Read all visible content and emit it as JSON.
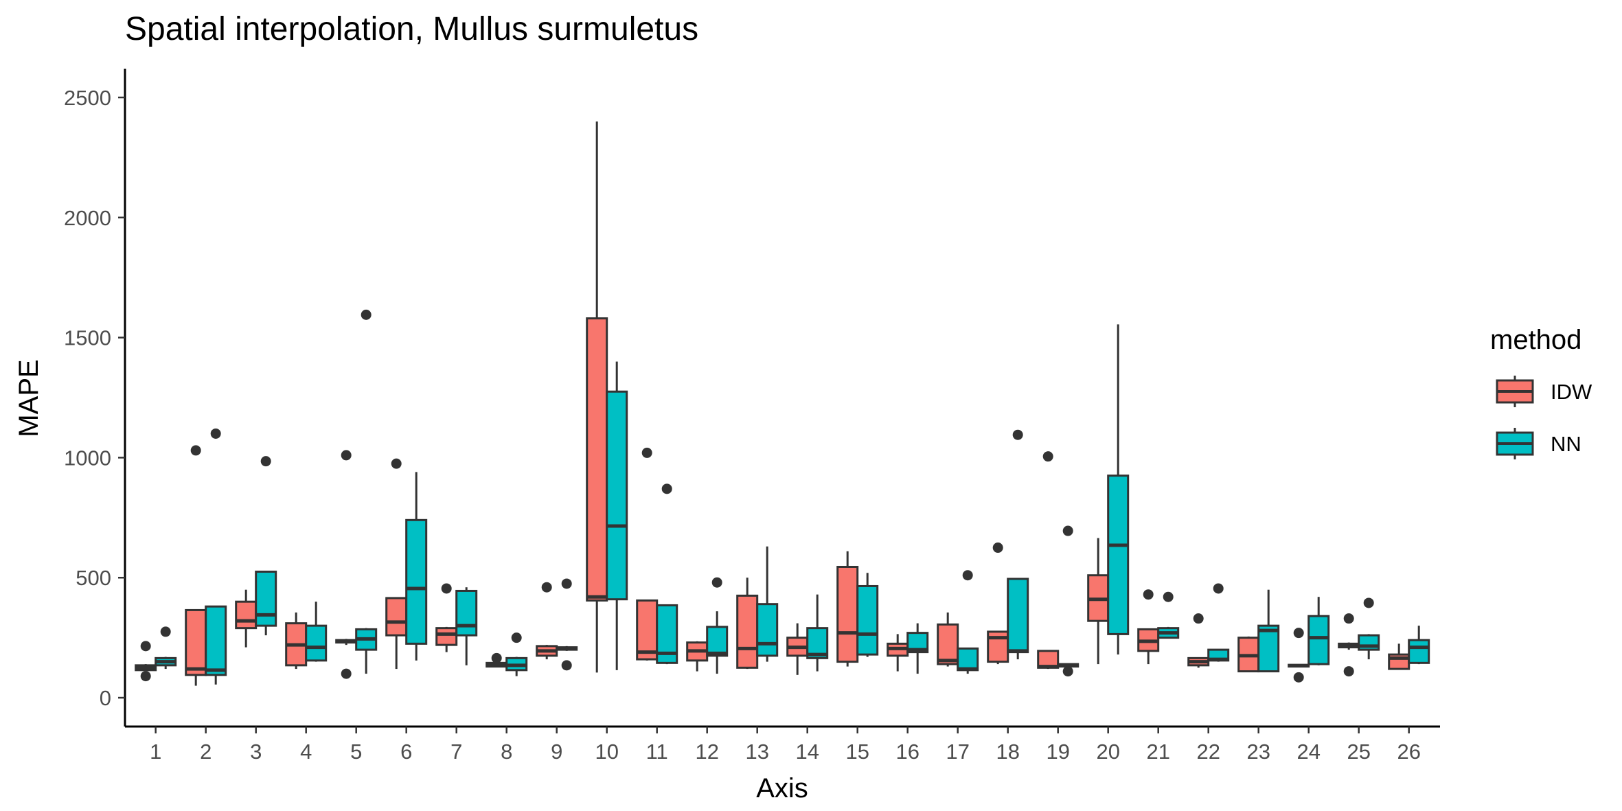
{
  "chart_data": {
    "type": "boxplot",
    "title": "Spatial interpolation, Mullus surmuletus",
    "xlabel": "Axis",
    "ylabel": "MAPE",
    "ylim": [
      -120,
      2620
    ],
    "yticks": [
      0,
      500,
      1000,
      1500,
      2000,
      2500
    ],
    "grid": false,
    "legend_position": "right",
    "legend_title": "method",
    "categories": [
      "1",
      "2",
      "3",
      "4",
      "5",
      "6",
      "7",
      "8",
      "9",
      "10",
      "11",
      "12",
      "13",
      "14",
      "15",
      "16",
      "17",
      "18",
      "19",
      "20",
      "21",
      "22",
      "23",
      "24",
      "25",
      "26"
    ],
    "series": [
      {
        "name": "IDW",
        "color": "#F8766D",
        "boxes": [
          {
            "lw": 115,
            "q1": 115,
            "med": 125,
            "q3": 135,
            "uw": 140,
            "out": [
              90,
              215
            ]
          },
          {
            "lw": 50,
            "q1": 95,
            "med": 120,
            "q3": 365,
            "uw": 365,
            "out": [
              1030
            ]
          },
          {
            "lw": 210,
            "q1": 290,
            "med": 320,
            "q3": 400,
            "uw": 450,
            "out": []
          },
          {
            "lw": 120,
            "q1": 135,
            "med": 220,
            "q3": 310,
            "uw": 355,
            "out": []
          },
          {
            "lw": 220,
            "q1": 230,
            "med": 235,
            "q3": 240,
            "uw": 245,
            "out": [
              100,
              1010
            ]
          },
          {
            "lw": 120,
            "q1": 260,
            "med": 315,
            "q3": 415,
            "uw": 415,
            "out": [
              975
            ]
          },
          {
            "lw": 190,
            "q1": 220,
            "med": 265,
            "q3": 290,
            "uw": 295,
            "out": [
              455
            ]
          },
          {
            "lw": 130,
            "q1": 130,
            "med": 138,
            "q3": 145,
            "uw": 145,
            "out": [
              165
            ]
          },
          {
            "lw": 160,
            "q1": 175,
            "med": 195,
            "q3": 215,
            "uw": 220,
            "out": [
              460
            ]
          },
          {
            "lw": 105,
            "q1": 405,
            "med": 420,
            "q3": 1580,
            "uw": 2400,
            "out": []
          },
          {
            "lw": 155,
            "q1": 160,
            "med": 190,
            "q3": 405,
            "uw": 405,
            "out": [
              1020
            ]
          },
          {
            "lw": 110,
            "q1": 155,
            "med": 195,
            "q3": 230,
            "uw": 235,
            "out": []
          },
          {
            "lw": 120,
            "q1": 125,
            "med": 205,
            "q3": 425,
            "uw": 500,
            "out": []
          },
          {
            "lw": 95,
            "q1": 175,
            "med": 210,
            "q3": 250,
            "uw": 310,
            "out": []
          },
          {
            "lw": 130,
            "q1": 150,
            "med": 270,
            "q3": 545,
            "uw": 610,
            "out": []
          },
          {
            "lw": 110,
            "q1": 175,
            "med": 205,
            "q3": 225,
            "uw": 265,
            "out": []
          },
          {
            "lw": 130,
            "q1": 140,
            "med": 155,
            "q3": 305,
            "uw": 355,
            "out": []
          },
          {
            "lw": 140,
            "q1": 150,
            "med": 250,
            "q3": 275,
            "uw": 275,
            "out": [
              625
            ]
          },
          {
            "lw": 120,
            "q1": 125,
            "med": 130,
            "q3": 195,
            "uw": 195,
            "out": [
              1005
            ]
          },
          {
            "lw": 140,
            "q1": 320,
            "med": 410,
            "q3": 510,
            "uw": 665,
            "out": []
          },
          {
            "lw": 140,
            "q1": 195,
            "med": 235,
            "q3": 285,
            "uw": 285,
            "out": [
              430
            ]
          },
          {
            "lw": 125,
            "q1": 135,
            "med": 150,
            "q3": 165,
            "uw": 165,
            "out": [
              330
            ]
          },
          {
            "lw": 110,
            "q1": 110,
            "med": 175,
            "q3": 250,
            "uw": 255,
            "out": []
          },
          {
            "lw": 130,
            "q1": 130,
            "med": 133,
            "q3": 137,
            "uw": 140,
            "out": [
              85,
              270
            ]
          },
          {
            "lw": 200,
            "q1": 210,
            "med": 218,
            "q3": 225,
            "uw": 230,
            "out": [
              110,
              330
            ]
          },
          {
            "lw": 120,
            "q1": 120,
            "med": 165,
            "q3": 180,
            "uw": 225,
            "out": []
          }
        ]
      },
      {
        "name": "NN",
        "color": "#00BFC4",
        "boxes": [
          {
            "lw": 120,
            "q1": 135,
            "med": 150,
            "q3": 165,
            "uw": 170,
            "out": [
              275
            ]
          },
          {
            "lw": 55,
            "q1": 95,
            "med": 115,
            "q3": 380,
            "uw": 380,
            "out": [
              1100
            ]
          },
          {
            "lw": 260,
            "q1": 300,
            "med": 345,
            "q3": 525,
            "uw": 525,
            "out": [
              985
            ]
          },
          {
            "lw": 150,
            "q1": 155,
            "med": 210,
            "q3": 300,
            "uw": 400,
            "out": []
          },
          {
            "lw": 100,
            "q1": 200,
            "med": 245,
            "q3": 285,
            "uw": 290,
            "out": [
              1595
            ]
          },
          {
            "lw": 155,
            "q1": 225,
            "med": 455,
            "q3": 740,
            "uw": 940,
            "out": []
          },
          {
            "lw": 135,
            "q1": 260,
            "med": 300,
            "q3": 445,
            "uw": 460,
            "out": []
          },
          {
            "lw": 90,
            "q1": 115,
            "med": 135,
            "q3": 165,
            "uw": 170,
            "out": [
              250
            ]
          },
          {
            "lw": 195,
            "q1": 200,
            "med": 205,
            "q3": 210,
            "uw": 215,
            "out": [
              135,
              475
            ]
          },
          {
            "lw": 115,
            "q1": 410,
            "med": 715,
            "q3": 1275,
            "uw": 1400,
            "out": []
          },
          {
            "lw": 140,
            "q1": 145,
            "med": 185,
            "q3": 385,
            "uw": 385,
            "out": [
              870
            ]
          },
          {
            "lw": 100,
            "q1": 175,
            "med": 185,
            "q3": 295,
            "uw": 360,
            "out": [
              480
            ]
          },
          {
            "lw": 150,
            "q1": 175,
            "med": 225,
            "q3": 390,
            "uw": 630,
            "out": []
          },
          {
            "lw": 110,
            "q1": 165,
            "med": 180,
            "q3": 290,
            "uw": 430,
            "out": []
          },
          {
            "lw": 170,
            "q1": 180,
            "med": 265,
            "q3": 465,
            "uw": 520,
            "out": []
          },
          {
            "lw": 100,
            "q1": 190,
            "med": 200,
            "q3": 270,
            "uw": 310,
            "out": []
          },
          {
            "lw": 100,
            "q1": 115,
            "med": 120,
            "q3": 205,
            "uw": 205,
            "out": [
              510
            ]
          },
          {
            "lw": 160,
            "q1": 190,
            "med": 195,
            "q3": 495,
            "uw": 495,
            "out": [
              1095
            ]
          },
          {
            "lw": 125,
            "q1": 130,
            "med": 135,
            "q3": 140,
            "uw": 140,
            "out": [
              110,
              695
            ]
          },
          {
            "lw": 180,
            "q1": 265,
            "med": 635,
            "q3": 925,
            "uw": 1555,
            "out": []
          },
          {
            "lw": 250,
            "q1": 250,
            "med": 270,
            "q3": 290,
            "uw": 295,
            "out": [
              420
            ]
          },
          {
            "lw": 150,
            "q1": 155,
            "med": 160,
            "q3": 200,
            "uw": 200,
            "out": [
              455
            ]
          },
          {
            "lw": 110,
            "q1": 110,
            "med": 280,
            "q3": 300,
            "uw": 450,
            "out": []
          },
          {
            "lw": 135,
            "q1": 140,
            "med": 250,
            "q3": 340,
            "uw": 420,
            "out": []
          },
          {
            "lw": 160,
            "q1": 200,
            "med": 215,
            "q3": 260,
            "uw": 265,
            "out": [
              395
            ]
          },
          {
            "lw": 140,
            "q1": 145,
            "med": 210,
            "q3": 240,
            "uw": 300,
            "out": []
          }
        ]
      }
    ]
  }
}
